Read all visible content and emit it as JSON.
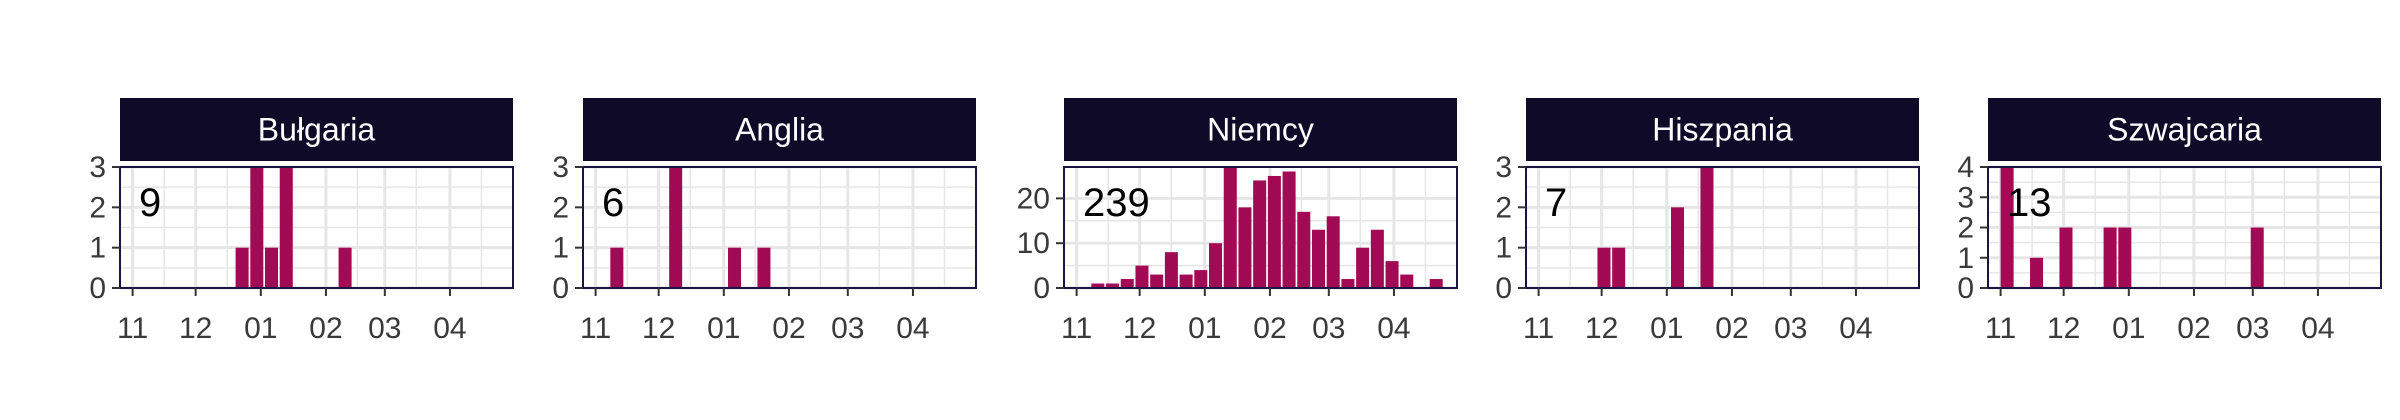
{
  "chart_data": {
    "type": "bar",
    "x_ticks": [
      "11",
      "12",
      "01",
      "02",
      "03",
      "04"
    ],
    "grid": true,
    "colors": {
      "bar": "#a30a55",
      "strip": "#0e0a28",
      "panel_border": "#1a1440",
      "grid": "#e6e6e6"
    },
    "panels": [
      {
        "name": "Bułgaria",
        "total": "9",
        "ylim": [
          0,
          3
        ],
        "y_ticks": [
          "0",
          "1",
          "2",
          "3"
        ],
        "bars": [
          {
            "x": "2020-12-20",
            "y": 1
          },
          {
            "x": "2020-12-27",
            "y": 3
          },
          {
            "x": "2021-01-03",
            "y": 1
          },
          {
            "x": "2021-01-10",
            "y": 3
          },
          {
            "x": "2021-02-07",
            "y": 1
          }
        ]
      },
      {
        "name": "Anglia",
        "total": "6",
        "ylim": [
          0,
          3
        ],
        "y_ticks": [
          "0",
          "1",
          "2",
          "3"
        ],
        "bars": [
          {
            "x": "2020-11-08",
            "y": 1
          },
          {
            "x": "2020-12-06",
            "y": 3
          },
          {
            "x": "2021-01-03",
            "y": 1
          },
          {
            "x": "2021-01-17",
            "y": 1
          }
        ]
      },
      {
        "name": "Niemcy",
        "total": "239",
        "ylim": [
          0,
          27
        ],
        "y_ticks": [
          "0",
          "10",
          "20"
        ],
        "bars": [
          {
            "x": "2020-11-08",
            "y": 1
          },
          {
            "x": "2020-11-15",
            "y": 1
          },
          {
            "x": "2020-11-22",
            "y": 2
          },
          {
            "x": "2020-11-29",
            "y": 5
          },
          {
            "x": "2020-12-06",
            "y": 3
          },
          {
            "x": "2020-12-13",
            "y": 8
          },
          {
            "x": "2020-12-20",
            "y": 3
          },
          {
            "x": "2020-12-27",
            "y": 4
          },
          {
            "x": "2021-01-03",
            "y": 10
          },
          {
            "x": "2021-01-10",
            "y": 27
          },
          {
            "x": "2021-01-17",
            "y": 18
          },
          {
            "x": "2021-01-24",
            "y": 24
          },
          {
            "x": "2021-01-31",
            "y": 25
          },
          {
            "x": "2021-02-07",
            "y": 26
          },
          {
            "x": "2021-02-14",
            "y": 17
          },
          {
            "x": "2021-02-21",
            "y": 13
          },
          {
            "x": "2021-02-28",
            "y": 16
          },
          {
            "x": "2021-03-07",
            "y": 2
          },
          {
            "x": "2021-03-14",
            "y": 9
          },
          {
            "x": "2021-03-21",
            "y": 13
          },
          {
            "x": "2021-03-28",
            "y": 6
          },
          {
            "x": "2021-04-04",
            "y": 3
          },
          {
            "x": "2021-04-18",
            "y": 2
          }
        ]
      },
      {
        "name": "Hiszpania",
        "total": "7",
        "ylim": [
          0,
          3
        ],
        "y_ticks": [
          "0",
          "1",
          "2",
          "3"
        ],
        "bars": [
          {
            "x": "2020-11-29",
            "y": 1
          },
          {
            "x": "2020-12-06",
            "y": 1
          },
          {
            "x": "2021-01-03",
            "y": 2
          },
          {
            "x": "2021-01-17",
            "y": 3
          }
        ]
      },
      {
        "name": "Szwajcaria",
        "total": "13",
        "ylim": [
          0,
          4
        ],
        "y_ticks": [
          "0",
          "1",
          "2",
          "3",
          "4"
        ],
        "bars": [
          {
            "x": "2020-11-01",
            "y": 4
          },
          {
            "x": "2020-11-15",
            "y": 1
          },
          {
            "x": "2020-11-29",
            "y": 2
          },
          {
            "x": "2020-12-20",
            "y": 2
          },
          {
            "x": "2020-12-27",
            "y": 2
          },
          {
            "x": "2021-02-28",
            "y": 2
          }
        ]
      }
    ]
  }
}
